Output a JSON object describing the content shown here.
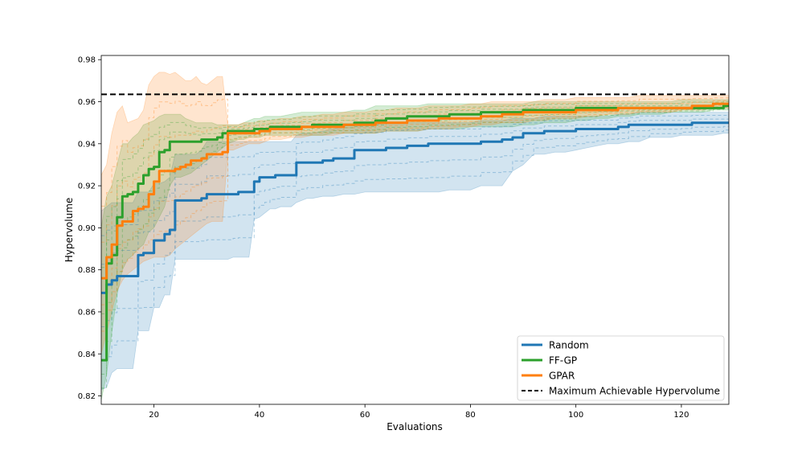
{
  "chart_data": {
    "type": "line",
    "title": "",
    "xlabel": "Evaluations",
    "ylabel": "Hypervolume",
    "xlim": [
      10,
      129
    ],
    "ylim": [
      0.816,
      0.982
    ],
    "xticks": [
      20,
      40,
      60,
      80,
      100,
      120
    ],
    "yticks": [
      0.82,
      0.84,
      0.86,
      0.88,
      0.9,
      0.92,
      0.94,
      0.96,
      0.98
    ],
    "ytick_labels": [
      "0.82",
      "0.84",
      "0.86",
      "0.88",
      "0.90",
      "0.92",
      "0.94",
      "0.96",
      "0.98"
    ],
    "grid": false,
    "legend_position": "bottom-right",
    "reference_line": {
      "name": "Maximum Achievable Hypervolume",
      "y": 0.9635,
      "color": "#000000",
      "style": "dashed"
    },
    "series": [
      {
        "name": "Random",
        "color": "#1f77b4",
        "x": [
          10,
          11,
          12,
          13,
          14,
          15,
          16,
          17,
          18,
          19,
          20,
          21,
          22,
          23,
          24,
          25,
          26,
          27,
          28,
          29,
          30,
          31,
          32,
          33,
          34,
          35,
          36,
          37,
          38,
          39,
          40,
          41,
          42,
          43,
          44,
          45,
          46,
          47,
          48,
          49,
          50,
          52,
          54,
          56,
          58,
          60,
          62,
          64,
          66,
          68,
          70,
          72,
          74,
          76,
          78,
          80,
          82,
          84,
          86,
          88,
          90,
          92,
          94,
          96,
          98,
          100,
          102,
          104,
          106,
          108,
          110,
          112,
          114,
          116,
          118,
          120,
          122,
          124,
          126,
          128,
          129
        ],
        "values": [
          0.869,
          0.873,
          0.875,
          0.877,
          0.877,
          0.877,
          0.877,
          0.887,
          0.888,
          0.888,
          0.894,
          0.894,
          0.897,
          0.899,
          0.913,
          0.913,
          0.913,
          0.913,
          0.913,
          0.914,
          0.916,
          0.916,
          0.916,
          0.916,
          0.916,
          0.916,
          0.917,
          0.917,
          0.917,
          0.922,
          0.924,
          0.924,
          0.924,
          0.925,
          0.925,
          0.925,
          0.925,
          0.931,
          0.931,
          0.931,
          0.931,
          0.932,
          0.933,
          0.933,
          0.937,
          0.937,
          0.937,
          0.938,
          0.938,
          0.939,
          0.939,
          0.94,
          0.94,
          0.94,
          0.94,
          0.94,
          0.941,
          0.941,
          0.942,
          0.943,
          0.945,
          0.945,
          0.946,
          0.946,
          0.946,
          0.947,
          0.947,
          0.947,
          0.947,
          0.948,
          0.949,
          0.949,
          0.949,
          0.949,
          0.949,
          0.949,
          0.95,
          0.95,
          0.95,
          0.95,
          0.95
        ],
        "lower": [
          0.823,
          0.824,
          0.831,
          0.833,
          0.833,
          0.833,
          0.833,
          0.851,
          0.851,
          0.851,
          0.862,
          0.862,
          0.868,
          0.868,
          0.885,
          0.885,
          0.885,
          0.885,
          0.885,
          0.885,
          0.885,
          0.885,
          0.885,
          0.885,
          0.885,
          0.886,
          0.886,
          0.886,
          0.886,
          0.904,
          0.905,
          0.907,
          0.909,
          0.909,
          0.91,
          0.91,
          0.91,
          0.912,
          0.913,
          0.914,
          0.914,
          0.915,
          0.915,
          0.916,
          0.916,
          0.917,
          0.917,
          0.917,
          0.917,
          0.917,
          0.917,
          0.917,
          0.917,
          0.918,
          0.918,
          0.918,
          0.92,
          0.92,
          0.92,
          0.927,
          0.93,
          0.935,
          0.935,
          0.936,
          0.936,
          0.937,
          0.938,
          0.939,
          0.94,
          0.94,
          0.941,
          0.941,
          0.943,
          0.943,
          0.943,
          0.944,
          0.944,
          0.944,
          0.944,
          0.945,
          0.945
        ],
        "upper": [
          0.908,
          0.91,
          0.912,
          0.912,
          0.912,
          0.912,
          0.912,
          0.917,
          0.917,
          0.917,
          0.921,
          0.921,
          0.922,
          0.924,
          0.935,
          0.935,
          0.935,
          0.935,
          0.935,
          0.937,
          0.941,
          0.941,
          0.941,
          0.941,
          0.941,
          0.941,
          0.941,
          0.941,
          0.941,
          0.941,
          0.941,
          0.941,
          0.941,
          0.941,
          0.941,
          0.941,
          0.941,
          0.944,
          0.945,
          0.945,
          0.945,
          0.946,
          0.947,
          0.948,
          0.948,
          0.949,
          0.949,
          0.95,
          0.95,
          0.95,
          0.95,
          0.95,
          0.95,
          0.95,
          0.95,
          0.95,
          0.951,
          0.951,
          0.951,
          0.952,
          0.952,
          0.952,
          0.953,
          0.953,
          0.953,
          0.953,
          0.953,
          0.953,
          0.953,
          0.954,
          0.954,
          0.955,
          0.955,
          0.955,
          0.955,
          0.955,
          0.955,
          0.955,
          0.955,
          0.955,
          0.955
        ]
      },
      {
        "name": "FF-GP",
        "color": "#2ca02c",
        "x": [
          10,
          11,
          12,
          13,
          14,
          15,
          16,
          17,
          18,
          19,
          20,
          21,
          22,
          23,
          24,
          25,
          26,
          27,
          28,
          29,
          30,
          31,
          32,
          33,
          34,
          35,
          36,
          37,
          38,
          39,
          40,
          41,
          42,
          44,
          46,
          48,
          50,
          52,
          54,
          56,
          58,
          60,
          62,
          64,
          66,
          68,
          70,
          72,
          74,
          76,
          78,
          80,
          82,
          84,
          86,
          88,
          90,
          92,
          94,
          96,
          98,
          100,
          102,
          104,
          106,
          108,
          110,
          112,
          114,
          116,
          118,
          120,
          122,
          124,
          126,
          128,
          129
        ],
        "values": [
          0.837,
          0.883,
          0.887,
          0.905,
          0.915,
          0.916,
          0.917,
          0.921,
          0.925,
          0.928,
          0.929,
          0.936,
          0.937,
          0.941,
          0.941,
          0.941,
          0.941,
          0.941,
          0.941,
          0.942,
          0.942,
          0.942,
          0.943,
          0.945,
          0.946,
          0.946,
          0.946,
          0.946,
          0.946,
          0.947,
          0.947,
          0.947,
          0.948,
          0.948,
          0.948,
          0.948,
          0.949,
          0.949,
          0.949,
          0.949,
          0.95,
          0.95,
          0.951,
          0.952,
          0.952,
          0.953,
          0.953,
          0.953,
          0.953,
          0.954,
          0.954,
          0.954,
          0.955,
          0.955,
          0.955,
          0.955,
          0.956,
          0.956,
          0.956,
          0.956,
          0.956,
          0.957,
          0.957,
          0.957,
          0.957,
          0.957,
          0.957,
          0.957,
          0.957,
          0.957,
          0.957,
          0.957,
          0.957,
          0.957,
          0.957,
          0.958,
          0.958
        ],
        "lower": [
          0.818,
          0.83,
          0.85,
          0.868,
          0.88,
          0.885,
          0.887,
          0.89,
          0.892,
          0.898,
          0.9,
          0.905,
          0.91,
          0.92,
          0.924,
          0.924,
          0.925,
          0.926,
          0.928,
          0.93,
          0.932,
          0.934,
          0.936,
          0.938,
          0.94,
          0.941,
          0.942,
          0.942,
          0.943,
          0.943,
          0.943,
          0.944,
          0.944,
          0.944,
          0.944,
          0.944,
          0.944,
          0.944,
          0.945,
          0.945,
          0.945,
          0.945,
          0.945,
          0.946,
          0.946,
          0.946,
          0.946,
          0.947,
          0.947,
          0.947,
          0.947,
          0.948,
          0.948,
          0.948,
          0.948,
          0.948,
          0.949,
          0.949,
          0.95,
          0.95,
          0.95,
          0.951,
          0.951,
          0.952,
          0.952,
          0.953,
          0.953,
          0.954,
          0.954,
          0.954,
          0.955,
          0.955,
          0.955,
          0.955,
          0.956,
          0.956,
          0.956
        ],
        "upper": [
          0.9,
          0.915,
          0.92,
          0.93,
          0.94,
          0.94,
          0.943,
          0.945,
          0.949,
          0.95,
          0.951,
          0.953,
          0.954,
          0.954,
          0.954,
          0.954,
          0.952,
          0.951,
          0.95,
          0.95,
          0.95,
          0.95,
          0.949,
          0.949,
          0.949,
          0.949,
          0.949,
          0.95,
          0.951,
          0.952,
          0.952,
          0.953,
          0.953,
          0.953,
          0.954,
          0.955,
          0.955,
          0.955,
          0.955,
          0.955,
          0.956,
          0.956,
          0.958,
          0.958,
          0.958,
          0.958,
          0.958,
          0.959,
          0.959,
          0.959,
          0.959,
          0.959,
          0.959,
          0.959,
          0.959,
          0.959,
          0.959,
          0.96,
          0.96,
          0.96,
          0.96,
          0.96,
          0.96,
          0.96,
          0.96,
          0.96,
          0.96,
          0.96,
          0.96,
          0.96,
          0.96,
          0.961,
          0.961,
          0.961,
          0.961,
          0.961,
          0.961
        ]
      },
      {
        "name": "GPAR",
        "color": "#ff7f0e",
        "x": [
          10,
          11,
          12,
          13,
          14,
          15,
          16,
          17,
          18,
          19,
          20,
          21,
          22,
          23,
          24,
          25,
          26,
          27,
          28,
          29,
          30,
          31,
          32,
          33,
          34,
          35,
          36,
          37,
          38,
          39,
          40,
          41,
          42,
          44,
          46,
          48,
          50,
          52,
          54,
          56,
          58,
          60,
          62,
          64,
          66,
          68,
          70,
          72,
          74,
          76,
          78,
          80,
          82,
          84,
          86,
          88,
          90,
          92,
          94,
          96,
          98,
          100,
          102,
          104,
          106,
          108,
          110,
          112,
          114,
          116,
          118,
          120,
          122,
          124,
          126,
          128,
          129
        ],
        "values": [
          0.876,
          0.886,
          0.892,
          0.901,
          0.903,
          0.903,
          0.908,
          0.909,
          0.91,
          0.916,
          0.922,
          0.927,
          0.927,
          0.927,
          0.928,
          0.929,
          0.93,
          0.932,
          0.932,
          0.933,
          0.935,
          0.935,
          0.935,
          0.936,
          0.945,
          0.945,
          0.945,
          0.945,
          0.945,
          0.945,
          0.946,
          0.946,
          0.947,
          0.947,
          0.947,
          0.948,
          0.948,
          0.948,
          0.948,
          0.949,
          0.949,
          0.949,
          0.95,
          0.95,
          0.95,
          0.951,
          0.951,
          0.951,
          0.952,
          0.952,
          0.952,
          0.952,
          0.953,
          0.953,
          0.954,
          0.954,
          0.955,
          0.955,
          0.955,
          0.955,
          0.955,
          0.956,
          0.956,
          0.956,
          0.956,
          0.957,
          0.957,
          0.957,
          0.957,
          0.957,
          0.957,
          0.957,
          0.958,
          0.958,
          0.959,
          0.959,
          0.959
        ],
        "lower": [
          0.84,
          0.85,
          0.86,
          0.87,
          0.875,
          0.878,
          0.88,
          0.882,
          0.884,
          0.885,
          0.886,
          0.886,
          0.886,
          0.887,
          0.89,
          0.892,
          0.894,
          0.896,
          0.898,
          0.9,
          0.902,
          0.903,
          0.903,
          0.903,
          0.937,
          0.937,
          0.938,
          0.939,
          0.94,
          0.94,
          0.94,
          0.941,
          0.942,
          0.942,
          0.943,
          0.943,
          0.944,
          0.944,
          0.944,
          0.945,
          0.945,
          0.945,
          0.945,
          0.946,
          0.946,
          0.946,
          0.946,
          0.947,
          0.947,
          0.947,
          0.948,
          0.948,
          0.949,
          0.949,
          0.95,
          0.95,
          0.95,
          0.951,
          0.951,
          0.952,
          0.952,
          0.952,
          0.953,
          0.953,
          0.954,
          0.954,
          0.954,
          0.955,
          0.955,
          0.955,
          0.955,
          0.956,
          0.956,
          0.956,
          0.957,
          0.957,
          0.957
        ],
        "upper": [
          0.925,
          0.93,
          0.945,
          0.955,
          0.958,
          0.95,
          0.951,
          0.952,
          0.956,
          0.968,
          0.972,
          0.974,
          0.974,
          0.973,
          0.974,
          0.972,
          0.97,
          0.97,
          0.972,
          0.969,
          0.968,
          0.97,
          0.972,
          0.972,
          0.949,
          0.949,
          0.949,
          0.95,
          0.95,
          0.95,
          0.951,
          0.951,
          0.951,
          0.952,
          0.952,
          0.953,
          0.953,
          0.954,
          0.954,
          0.955,
          0.955,
          0.955,
          0.956,
          0.956,
          0.957,
          0.957,
          0.957,
          0.958,
          0.958,
          0.958,
          0.958,
          0.959,
          0.959,
          0.96,
          0.96,
          0.96,
          0.96,
          0.96,
          0.961,
          0.961,
          0.961,
          0.962,
          0.962,
          0.962,
          0.962,
          0.962,
          0.962,
          0.963,
          0.963,
          0.963,
          0.963,
          0.963,
          0.963,
          0.963,
          0.963,
          0.963,
          0.963
        ]
      }
    ],
    "legend": [
      "Random",
      "FF-GP",
      "GPAR",
      "Maximum Achievable Hypervolume"
    ]
  }
}
